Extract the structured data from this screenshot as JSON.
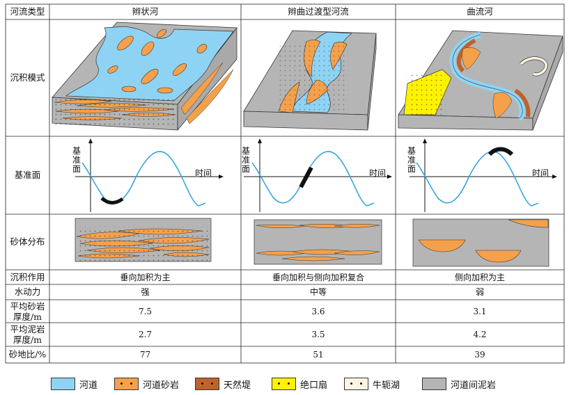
{
  "header": {
    "type_col": "河流类型",
    "braided": "辫状河",
    "transitional": "辫曲过渡型河流",
    "meandering": "曲流河"
  },
  "rows": {
    "model": "沉积模式",
    "baselevel": "基准面",
    "sand_dist": "砂体分布",
    "deposition": "沉积作用",
    "hydro": "水动力",
    "sand_thick": "平均砂岩厚度/m",
    "mud_thick": "平均泥岩厚度/m",
    "ratio": "砂地比/%"
  },
  "baselevel_axis": {
    "ylabel": "基准面",
    "xlabel": "时间"
  },
  "values": {
    "deposition": [
      "垂向加积为主",
      "垂向加积与侧向加积复合",
      "侧向加积为主"
    ],
    "hydro": [
      "强",
      "中等",
      "弱"
    ],
    "sand_thick": [
      "7.5",
      "3.6",
      "3.1"
    ],
    "mud_thick": [
      "2.7",
      "3.5",
      "4.2"
    ],
    "ratio": [
      "77",
      "51",
      "39"
    ]
  },
  "legend": [
    {
      "label": "河道",
      "color": "#8fd3f4",
      "dots": false,
      "icon": "channel"
    },
    {
      "label": "河道砂岩",
      "color": "#f5a04b",
      "dots": true,
      "icon": "channel-sandstone"
    },
    {
      "label": "天然堤",
      "color": "#c0622c",
      "dots": true,
      "icon": "levee"
    },
    {
      "label": "绝口扇",
      "color": "#fff200",
      "dots": true,
      "icon": "crevasse-splay"
    },
    {
      "label": "牛轭湖",
      "color": "#fdf5e2",
      "dots": true,
      "icon": "oxbow-lake"
    },
    {
      "label": "河道间泥岩",
      "color": "#b5b5b5",
      "dots": false,
      "icon": "interchannel-mudstone"
    }
  ],
  "colors": {
    "channel": "#8fd3f4",
    "sand": "#f5a04b",
    "levee": "#c0622c",
    "splay": "#fff200",
    "oxbow": "#fdf5e2",
    "mud": "#b5b5b5",
    "curve": "#3aa7e0"
  }
}
